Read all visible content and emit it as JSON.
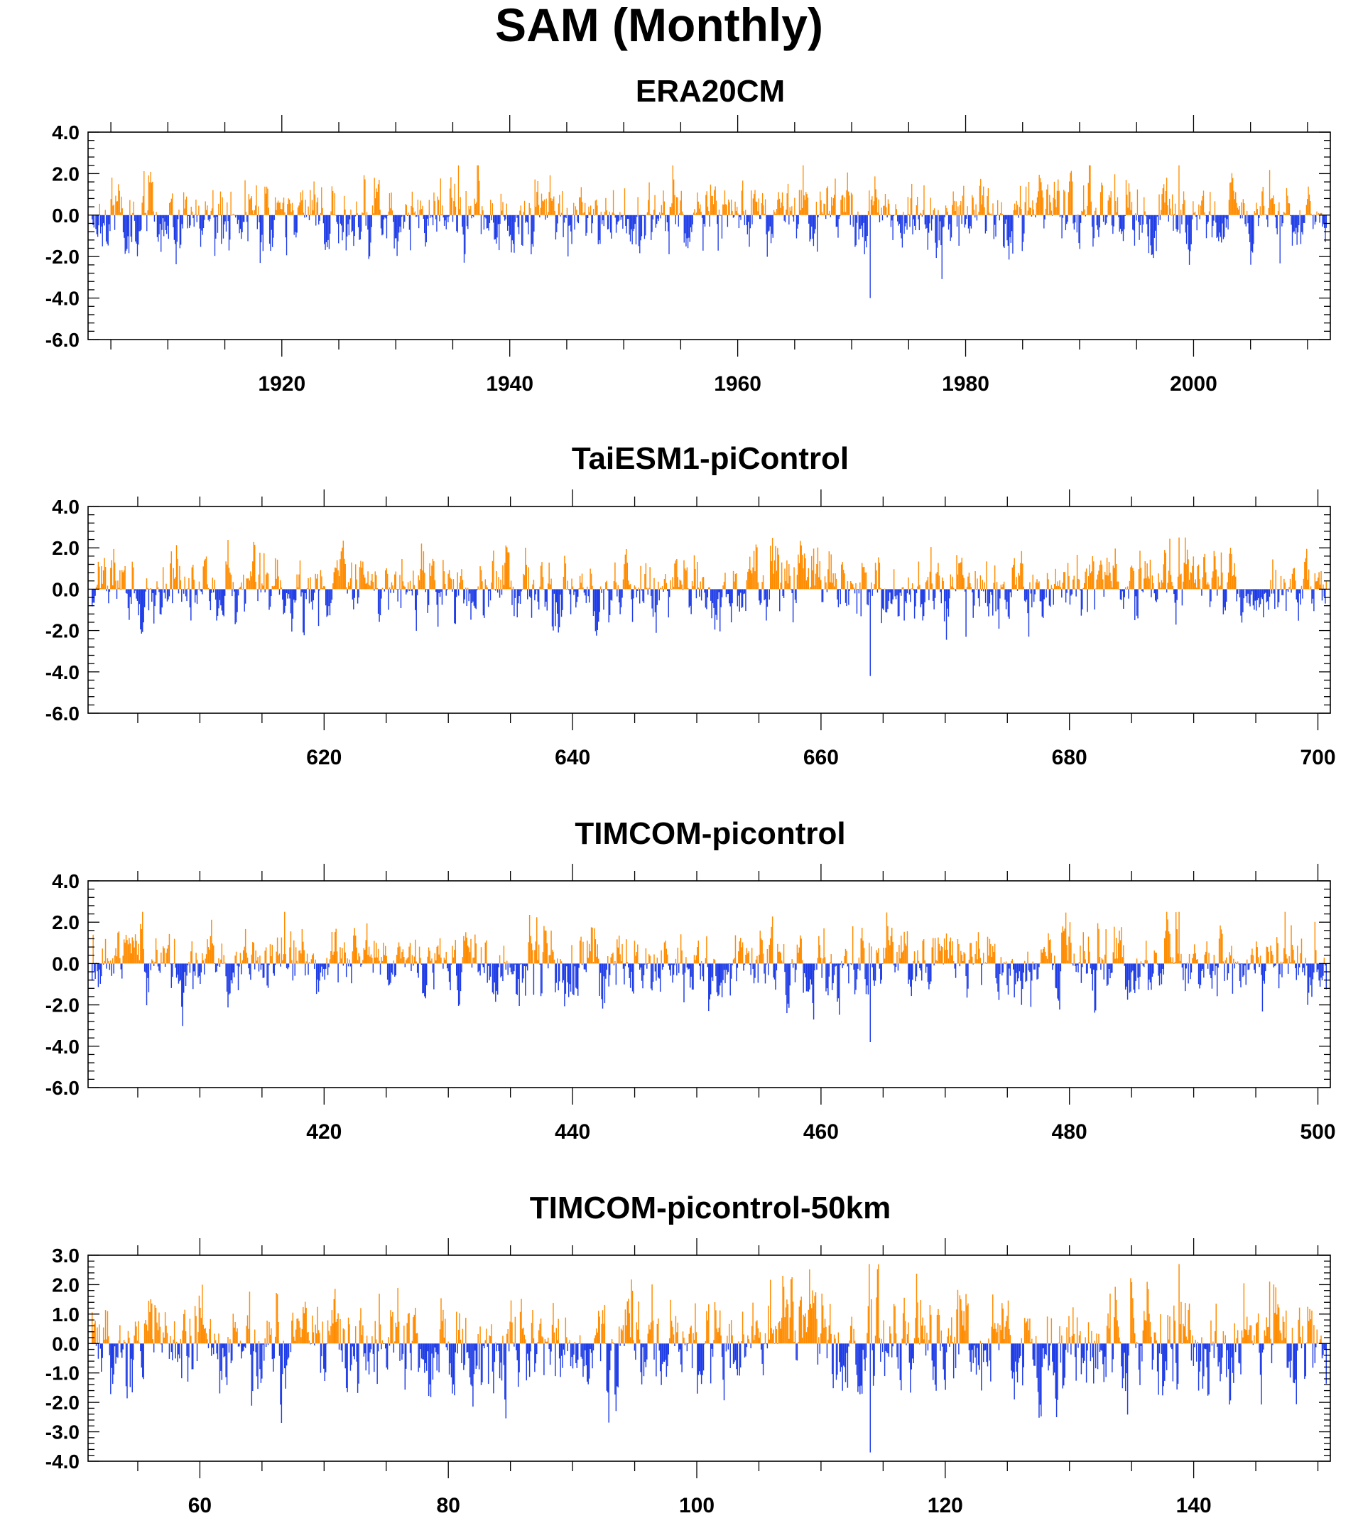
{
  "figure": {
    "title": "SAM (Monthly)"
  },
  "colors": {
    "positive": "#FF8C00",
    "negative": "#1E3CE6",
    "axis": "#000000"
  },
  "chart_data": [
    {
      "type": "bar",
      "title": "ERA20CM",
      "xlabel": "",
      "ylabel": "",
      "ylim": [
        -6.0,
        4.0
      ],
      "xlim": [
        1903.0,
        2012.0
      ],
      "yticks": [
        "4.0",
        "2.0",
        "0.0",
        "-2.0",
        "-4.0",
        "-6.0"
      ],
      "ytick_values": [
        4.0,
        2.0,
        0.0,
        -2.0,
        -4.0,
        -6.0
      ],
      "xticks": [
        "1920",
        "1940",
        "1960",
        "1980",
        "2000"
      ],
      "xtick_values": [
        1920,
        1940,
        1960,
        1980,
        2000
      ],
      "x_minor_step": 5,
      "sample_months": 1308,
      "peak_values": {
        "max": 2.4,
        "min": -4.0
      },
      "seed": 11
    },
    {
      "type": "bar",
      "title": "TaiESM1-piControl",
      "xlabel": "",
      "ylabel": "",
      "ylim": [
        -6.0,
        4.0
      ],
      "xlim": [
        601.0,
        701.0
      ],
      "yticks": [
        "4.0",
        "2.0",
        "0.0",
        "-2.0",
        "-4.0",
        "-6.0"
      ],
      "ytick_values": [
        4.0,
        2.0,
        0.0,
        -2.0,
        -4.0,
        -6.0
      ],
      "xticks": [
        "620",
        "640",
        "660",
        "680",
        "700"
      ],
      "xtick_values": [
        620,
        640,
        660,
        680,
        700
      ],
      "x_minor_step": 5,
      "sample_months": 1200,
      "peak_values": {
        "max": 2.5,
        "min": -4.2
      },
      "seed": 23
    },
    {
      "type": "bar",
      "title": "TIMCOM-picontrol",
      "xlabel": "",
      "ylabel": "",
      "ylim": [
        -6.0,
        4.0
      ],
      "xlim": [
        401.0,
        501.0
      ],
      "yticks": [
        "4.0",
        "2.0",
        "0.0",
        "-2.0",
        "-4.0",
        "-6.0"
      ],
      "ytick_values": [
        4.0,
        2.0,
        0.0,
        -2.0,
        -4.0,
        -6.0
      ],
      "xticks": [
        "420",
        "440",
        "460",
        "480",
        "500"
      ],
      "xtick_values": [
        420,
        440,
        460,
        480,
        500
      ],
      "x_minor_step": 5,
      "sample_months": 1200,
      "peak_values": {
        "max": 2.5,
        "min": -3.8
      },
      "seed": 37
    },
    {
      "type": "bar",
      "title": "TIMCOM-picontrol-50km",
      "xlabel": "",
      "ylabel": "",
      "ylim": [
        -4.0,
        3.0
      ],
      "xlim": [
        51.0,
        151.0
      ],
      "yticks": [
        "3.0",
        "2.0",
        "1.0",
        "0.0",
        "-1.0",
        "-2.0",
        "-3.0",
        "-4.0"
      ],
      "ytick_values": [
        3.0,
        2.0,
        1.0,
        0.0,
        -1.0,
        -2.0,
        -3.0,
        -4.0
      ],
      "xticks": [
        "60",
        "80",
        "100",
        "120",
        "140"
      ],
      "xtick_values": [
        60,
        80,
        100,
        120,
        140
      ],
      "x_minor_step": 5,
      "sample_months": 1200,
      "peak_values": {
        "max": 2.7,
        "min": -3.7
      },
      "seed": 53
    }
  ]
}
